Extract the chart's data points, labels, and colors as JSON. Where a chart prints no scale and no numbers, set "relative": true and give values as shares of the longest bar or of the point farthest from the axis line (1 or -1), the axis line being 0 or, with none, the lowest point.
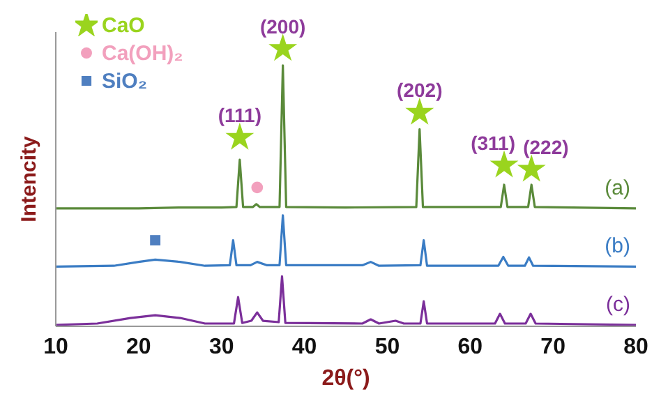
{
  "chart_data": {
    "type": "line",
    "xlabel": "2θ(°)",
    "ylabel": "Intencity",
    "relative": true,
    "xlim": [
      10,
      80
    ],
    "xticks": [
      10,
      20,
      30,
      40,
      50,
      60,
      70,
      80
    ],
    "marker": "none",
    "legend": "top left",
    "grid": false,
    "series": [
      {
        "name": "(a)",
        "color": "#5a8a3a",
        "x": [
          10,
          20,
          25,
          30,
          31.8,
          32.2,
          32.6,
          33.8,
          34.2,
          34.6,
          37,
          37.4,
          37.8,
          45,
          53.5,
          53.9,
          54.3,
          63.7,
          64.1,
          64.5,
          67,
          67.4,
          67.8,
          80
        ],
        "values": [
          0.425,
          0.425,
          0.428,
          0.428,
          0.43,
          0.6,
          0.43,
          0.43,
          0.44,
          0.43,
          0.43,
          0.94,
          0.43,
          0.428,
          0.43,
          0.71,
          0.43,
          0.43,
          0.51,
          0.43,
          0.43,
          0.51,
          0.43,
          0.425
        ]
      },
      {
        "name": "(b)",
        "color": "#3a7cc4",
        "x": [
          10,
          17,
          20,
          22,
          25,
          28,
          31,
          31.4,
          31.8,
          33.5,
          34.3,
          35.5,
          37,
          37.4,
          37.8,
          47,
          48,
          49,
          54,
          54.4,
          54.8,
          63.4,
          64,
          64.6,
          66.6,
          67.1,
          67.6,
          80
        ],
        "values": [
          0.215,
          0.218,
          0.232,
          0.24,
          0.232,
          0.218,
          0.22,
          0.31,
          0.22,
          0.22,
          0.232,
          0.22,
          0.22,
          0.4,
          0.22,
          0.22,
          0.232,
          0.218,
          0.22,
          0.31,
          0.218,
          0.218,
          0.25,
          0.218,
          0.218,
          0.248,
          0.218,
          0.215
        ]
      },
      {
        "name": "(c)",
        "color": "#7b2f9a",
        "x": [
          10,
          15,
          19,
          22,
          25,
          28,
          31.5,
          32,
          32.5,
          33.6,
          34.3,
          35,
          36.9,
          37.3,
          37.7,
          47,
          48,
          49,
          51,
          52,
          54,
          54.4,
          54.8,
          63,
          63.6,
          64.2,
          66.7,
          67.3,
          67.9,
          80
        ],
        "values": [
          0.005,
          0.01,
          0.03,
          0.04,
          0.03,
          0.01,
          0.01,
          0.105,
          0.012,
          0.02,
          0.05,
          0.02,
          0.015,
          0.18,
          0.012,
          0.01,
          0.025,
          0.01,
          0.02,
          0.01,
          0.01,
          0.09,
          0.01,
          0.01,
          0.045,
          0.01,
          0.01,
          0.045,
          0.01,
          0.005
        ]
      },
      {
        "name": "CaO",
        "type": "scatter",
        "marker": "star",
        "color": "#9ad41e",
        "x": [
          32.2,
          37.4,
          53.9,
          64.1,
          67.4
        ],
        "values": [
          0.68,
          1.0,
          0.77,
          0.58,
          0.565
        ]
      },
      {
        "name": "Ca(OH)₂",
        "type": "scatter",
        "marker": "circle",
        "color": "#f2a0bd",
        "x": [
          34.3
        ],
        "values": [
          0.5
        ]
      },
      {
        "name": "SiO₂",
        "type": "scatter",
        "marker": "square",
        "color": "#4f7fc0",
        "x": [
          22
        ],
        "values": [
          0.31
        ]
      }
    ],
    "annotations": [
      {
        "text": "(111)",
        "x": 32.2,
        "y": 0.68
      },
      {
        "text": "(200)",
        "x": 37.4,
        "y": 1.0
      },
      {
        "text": "(202)",
        "x": 53.9,
        "y": 0.77
      },
      {
        "text": "(311)",
        "x": 64.1,
        "y": 0.58
      },
      {
        "text": "(222)",
        "x": 67.4,
        "y": 0.565
      }
    ]
  }
}
